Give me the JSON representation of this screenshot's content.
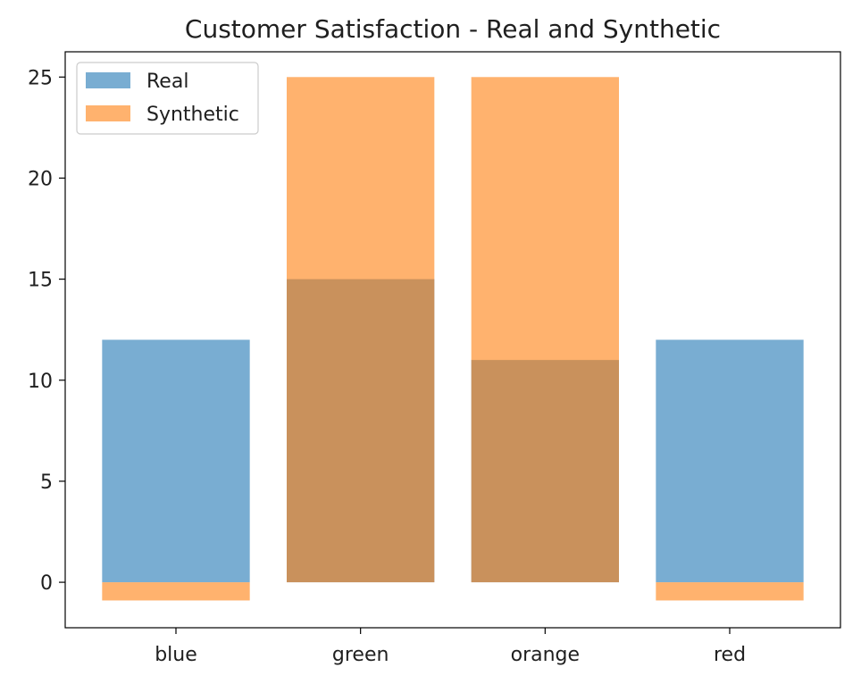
{
  "chart_data": {
    "type": "bar",
    "title": "Customer Satisfaction - Real and Synthetic",
    "xlabel": "",
    "ylabel": "",
    "categories": [
      "blue",
      "green",
      "orange",
      "red"
    ],
    "series": [
      {
        "name": "Real",
        "values": [
          12,
          15,
          11,
          12
        ],
        "color": "#1f77b4",
        "alpha": 0.6
      },
      {
        "name": "Synthetic",
        "values": [
          -0.9,
          25,
          25,
          -0.9
        ],
        "color": "#ff7f0e",
        "alpha": 0.6
      }
    ],
    "ylim": [
      -2.25,
      26.25
    ],
    "yticks": [
      0,
      5,
      10,
      15,
      20,
      25
    ],
    "grid": false,
    "legend_position": "top-left"
  }
}
